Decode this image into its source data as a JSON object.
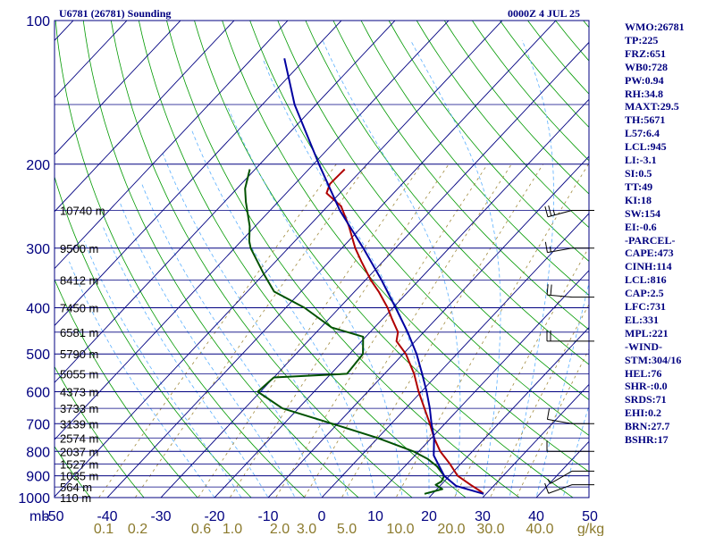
{
  "header": {
    "title": "U6781 (26781) Sounding",
    "time": "0000Z  4 JUL 25"
  },
  "stats": [
    "WMO:26781",
    "TP:225",
    "FRZ:651",
    "WB0:728",
    "PW:0.94",
    "RH:34.8",
    "MAXT:29.5",
    "TH:5671",
    "L57:6.4",
    "LCL:945",
    "LI:-3.1",
    "SI:0.5",
    "TT:49",
    "KI:18",
    "SW:154",
    "EI:-0.6",
    "-PARCEL-",
    "CAPE:473",
    "CINH:114",
    "LCL:816",
    "CAP:2.5",
    "LFC:731",
    "EL:331",
    "MPL:221",
    "-WIND-",
    "STM:304/16",
    "HEL:76",
    "SHR-:0.0",
    "SRDS:71",
    "EHI:0.2",
    "BRN:27.7",
    "BSHR:17"
  ],
  "colors": {
    "frame": "#000080",
    "isobar": "#000080",
    "isotherm": "#000080",
    "dry_adiabat": "#009900",
    "moist_adiabat": "#5bb0ff",
    "mixing_ratio": "#a08a3c",
    "temperature": "#b00000",
    "dewpoint": "#005200",
    "parcel": "#0000a0",
    "wind_barb": "#000000"
  },
  "chart_data": {
    "type": "line",
    "title": "U6781 (26781) Sounding",
    "xlabel": "",
    "ylabel": "mb",
    "y_scale": "log",
    "ylim": [
      1000,
      100
    ],
    "xlim": [
      -50,
      50
    ],
    "pressure_ticks": [
      100,
      200,
      300,
      400,
      500,
      600,
      700,
      800,
      900,
      1000
    ],
    "temperature_ticks": [
      -50,
      -40,
      -30,
      -20,
      -10,
      0,
      10,
      20,
      30,
      40,
      50
    ],
    "temperature_tick_labels": [
      "-50",
      "-40",
      "-30",
      "-20",
      "-10",
      "0",
      "10",
      "20",
      "30",
      "40",
      "50"
    ],
    "axis_unit_label": "mb",
    "mixing_ratio_labels": [
      "0.1",
      "0.2",
      "0.6",
      "1.0",
      "2.0",
      "3.0",
      "5.0",
      "10.0",
      "20.0",
      "30.0",
      "40.0",
      "g/kg"
    ],
    "mixing_ratio_values": [
      0.1,
      0.2,
      0.6,
      1.0,
      2.0,
      3.0,
      5.0,
      10.0,
      20.0,
      30.0,
      40.0
    ],
    "height_labels": [
      {
        "p": 250,
        "label": "10740 m"
      },
      {
        "p": 300,
        "label": "9500 m"
      },
      {
        "p": 350,
        "label": "8412 m"
      },
      {
        "p": 400,
        "label": "7450 m"
      },
      {
        "p": 450,
        "label": "6581 m"
      },
      {
        "p": 500,
        "label": "5790 m"
      },
      {
        "p": 550,
        "label": "5055 m"
      },
      {
        "p": 600,
        "label": "4373 m"
      },
      {
        "p": 650,
        "label": "3733 m"
      },
      {
        "p": 700,
        "label": "3139 m"
      },
      {
        "p": 750,
        "label": "2574 m"
      },
      {
        "p": 800,
        "label": "2037 m"
      },
      {
        "p": 850,
        "label": "1527 m"
      },
      {
        "p": 900,
        "label": "1035 m"
      },
      {
        "p": 950,
        "label": "564 m"
      },
      {
        "p": 1000,
        "label": "110 m"
      }
    ],
    "series": [
      {
        "id": "temperature",
        "points": [
          {
            "p": 982,
            "t": 29.5
          },
          {
            "p": 970,
            "t": 28.5
          },
          {
            "p": 940,
            "t": 25.5
          },
          {
            "p": 900,
            "t": 21.5
          },
          {
            "p": 850,
            "t": 18.0
          },
          {
            "p": 800,
            "t": 14.0
          },
          {
            "p": 750,
            "t": 10.5
          },
          {
            "p": 700,
            "t": 7.2
          },
          {
            "p": 650,
            "t": 3.5
          },
          {
            "p": 600,
            "t": -0.5
          },
          {
            "p": 550,
            "t": -4.5
          },
          {
            "p": 500,
            "t": -9.5
          },
          {
            "p": 470,
            "t": -13.5
          },
          {
            "p": 450,
            "t": -14.8
          },
          {
            "p": 420,
            "t": -18.5
          },
          {
            "p": 400,
            "t": -21.0
          },
          {
            "p": 370,
            "t": -25.5
          },
          {
            "p": 350,
            "t": -29.0
          },
          {
            "p": 320,
            "t": -34.0
          },
          {
            "p": 300,
            "t": -37.5
          },
          {
            "p": 270,
            "t": -42.5
          },
          {
            "p": 245,
            "t": -47.5
          },
          {
            "p": 230,
            "t": -52.5
          },
          {
            "p": 220,
            "t": -53.5
          },
          {
            "p": 205,
            "t": -53.3
          }
        ]
      },
      {
        "id": "dewpoint",
        "points": [
          {
            "p": 982,
            "t": 18.5
          },
          {
            "p": 960,
            "t": 21.0
          },
          {
            "p": 940,
            "t": 19.0
          },
          {
            "p": 925,
            "t": 19.5
          },
          {
            "p": 900,
            "t": 19.0
          },
          {
            "p": 860,
            "t": 16.0
          },
          {
            "p": 830,
            "t": 13.0
          },
          {
            "p": 800,
            "t": 9.0
          },
          {
            "p": 750,
            "t": 0.0
          },
          {
            "p": 700,
            "t": -11.0
          },
          {
            "p": 650,
            "t": -23.0
          },
          {
            "p": 600,
            "t": -30.5
          },
          {
            "p": 560,
            "t": -30.0
          },
          {
            "p": 550,
            "t": -17.0
          },
          {
            "p": 500,
            "t": -17.5
          },
          {
            "p": 460,
            "t": -20.5
          },
          {
            "p": 440,
            "t": -28.0
          },
          {
            "p": 400,
            "t": -36.5
          },
          {
            "p": 370,
            "t": -45.0
          },
          {
            "p": 340,
            "t": -50.0
          },
          {
            "p": 300,
            "t": -57.0
          },
          {
            "p": 290,
            "t": -58.5
          },
          {
            "p": 270,
            "t": -61.0
          },
          {
            "p": 240,
            "t": -66.0
          },
          {
            "p": 225,
            "t": -68.5
          },
          {
            "p": 205,
            "t": -71.0
          }
        ]
      },
      {
        "id": "parcel",
        "points": [
          {
            "p": 982,
            "t": 29.5
          },
          {
            "p": 945,
            "t": 23.0
          },
          {
            "p": 900,
            "t": 19.0
          },
          {
            "p": 816,
            "t": 13.5
          },
          {
            "p": 750,
            "t": 10.5
          },
          {
            "p": 700,
            "t": 7.5
          },
          {
            "p": 650,
            "t": 4.5
          },
          {
            "p": 600,
            "t": 1.0
          },
          {
            "p": 550,
            "t": -3.0
          },
          {
            "p": 500,
            "t": -7.5
          },
          {
            "p": 450,
            "t": -13.0
          },
          {
            "p": 400,
            "t": -19.5
          },
          {
            "p": 350,
            "t": -27.0
          },
          {
            "p": 300,
            "t": -36.0
          },
          {
            "p": 250,
            "t": -47.0
          },
          {
            "p": 200,
            "t": -59.0
          },
          {
            "p": 150,
            "t": -74.0
          },
          {
            "p": 120,
            "t": -84.0
          }
        ]
      }
    ],
    "wind_barbs": [
      {
        "p": 250,
        "dir": 255,
        "kt": 25
      },
      {
        "p": 300,
        "dir": 260,
        "kt": 15
      },
      {
        "p": 380,
        "dir": 275,
        "kt": 20
      },
      {
        "p": 470,
        "dir": 270,
        "kt": 20
      },
      {
        "p": 700,
        "dir": 280,
        "kt": 10
      },
      {
        "p": 800,
        "dir": 270,
        "kt": 10
      },
      {
        "p": 880,
        "dir": 240,
        "kt": 5
      },
      {
        "p": 940,
        "dir": 250,
        "kt": 10
      }
    ]
  }
}
